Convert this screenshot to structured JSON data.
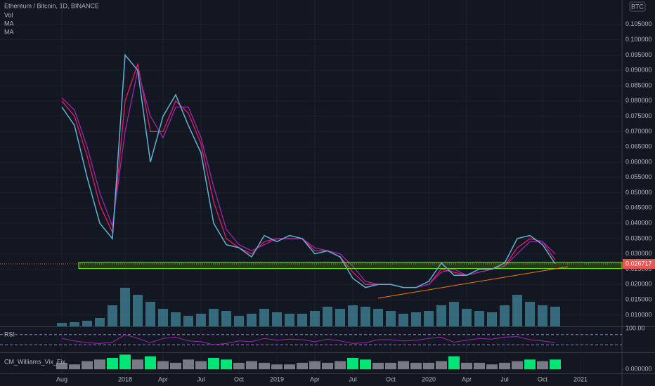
{
  "chart_data": [
    {
      "type": "line",
      "title": "Ethereum / Bitcoin, 1D, BINANCE",
      "currency": "BTC",
      "categories": [
        "Aug",
        null,
        null,
        null,
        null,
        "2018",
        null,
        null,
        "Apr",
        null,
        null,
        "Jul",
        null,
        null,
        "Oct",
        null,
        null,
        "2019",
        null,
        null,
        "Apr",
        null,
        null,
        "Jul",
        null,
        null,
        "Oct",
        null,
        null,
        "2020",
        null,
        null,
        "Apr",
        null,
        null,
        "Jul",
        null,
        null,
        "Oct",
        null,
        null,
        "2021"
      ],
      "values": [
        0.078,
        0.072,
        0.055,
        0.04,
        0.035,
        0.095,
        0.09,
        0.06,
        0.075,
        0.082,
        0.072,
        0.063,
        0.04,
        0.033,
        0.032,
        0.029,
        0.036,
        0.034,
        0.036,
        0.035,
        0.03,
        0.031,
        0.029,
        0.022,
        0.019,
        0.02,
        0.02,
        0.019,
        0.019,
        0.021,
        0.027,
        0.023,
        0.023,
        0.025,
        0.025,
        0.027,
        0.035,
        0.036,
        0.033,
        0.026717,
        null,
        null
      ],
      "color": "#5fb3d6",
      "series": [
        {
          "name": "Vol",
          "type": "bar",
          "axis": "y2",
          "color": "#3f7f95",
          "values": [
            5,
            6,
            8,
            12,
            30,
            55,
            45,
            35,
            25,
            20,
            15,
            18,
            25,
            22,
            15,
            18,
            25,
            20,
            18,
            18,
            22,
            28,
            25,
            30,
            28,
            25,
            22,
            18,
            20,
            22,
            30,
            35,
            25,
            22,
            20,
            30,
            45,
            35,
            30,
            28,
            null,
            null
          ]
        },
        {
          "name": "MA",
          "color": "#e91e63",
          "values": [
            0.08,
            0.075,
            0.062,
            0.046,
            0.037,
            0.08,
            0.092,
            0.07,
            0.07,
            0.08,
            0.076,
            0.066,
            0.047,
            0.035,
            0.032,
            0.03,
            0.034,
            0.035,
            0.035,
            0.035,
            0.031,
            0.031,
            0.029,
            0.024,
            0.02,
            0.02,
            0.02,
            0.019,
            0.019,
            0.02,
            0.025,
            0.024,
            0.023,
            0.024,
            0.025,
            0.026,
            0.032,
            0.035,
            0.034,
            0.028,
            null,
            null
          ]
        },
        {
          "name": "MA",
          "color": "#9c27b0",
          "values": [
            0.081,
            0.077,
            0.065,
            0.05,
            0.039,
            0.07,
            0.09,
            0.075,
            0.068,
            0.078,
            0.078,
            0.068,
            0.052,
            0.038,
            0.033,
            0.031,
            0.033,
            0.035,
            0.035,
            0.035,
            0.032,
            0.031,
            0.03,
            0.026,
            0.021,
            0.02,
            0.02,
            0.019,
            0.019,
            0.02,
            0.024,
            0.025,
            0.023,
            0.024,
            0.025,
            0.026,
            0.03,
            0.034,
            0.034,
            0.03,
            null,
            null
          ]
        }
      ],
      "ylim": [
        0.0063,
        0.113
      ],
      "y2lim": [
        0,
        100
      ],
      "yticks": [
        {
          "value": 0.01,
          "label": "0.010000"
        },
        {
          "value": 0.015,
          "label": "0.015000"
        },
        {
          "value": 0.02,
          "label": "0.020000"
        },
        {
          "value": 0.025,
          "label": "0.025000"
        },
        {
          "value": 0.03,
          "label": "0.030000"
        },
        {
          "value": 0.035,
          "label": "0.035000"
        },
        {
          "value": 0.04,
          "label": "0.040000"
        },
        {
          "value": 0.045,
          "label": "0.045000"
        },
        {
          "value": 0.05,
          "label": "0.050000"
        },
        {
          "value": 0.055,
          "label": "0.055000"
        },
        {
          "value": 0.06,
          "label": "0.060000"
        },
        {
          "value": 0.065,
          "label": "0.065000"
        },
        {
          "value": 0.07,
          "label": "0.070000"
        },
        {
          "value": 0.075,
          "label": "0.075000"
        },
        {
          "value": 0.08,
          "label": "0.080000"
        },
        {
          "value": 0.085,
          "label": "0.085000"
        },
        {
          "value": 0.09,
          "label": "0.090000"
        },
        {
          "value": 0.095,
          "label": "0.095000"
        },
        {
          "value": 0.1,
          "label": "0.100000"
        },
        {
          "value": 0.105,
          "label": "0.105000"
        }
      ],
      "grid": true,
      "support_zone": [
        0.0252,
        0.0272
      ],
      "zone_color": "#76ff03",
      "trendline": {
        "values": [
          0.0155,
          0.0258
        ],
        "span": [
          25,
          40
        ],
        "color": "#f57c00"
      },
      "last_value": 0.026717,
      "last_color": "#ef5350"
    },
    {
      "type": "line",
      "title": "RSI",
      "color": "#9c27b0",
      "values": [
        55,
        45,
        38,
        35,
        40,
        70,
        55,
        38,
        55,
        60,
        45,
        42,
        30,
        35,
        45,
        42,
        55,
        48,
        52,
        50,
        42,
        52,
        45,
        35,
        38,
        50,
        50,
        45,
        48,
        55,
        60,
        40,
        48,
        55,
        52,
        60,
        62,
        50,
        45,
        38,
        null,
        null
      ],
      "ylim": [
        0,
        100
      ],
      "yticks": [
        {
          "value": 100,
          "label": "100.00"
        }
      ],
      "bands": [
        30,
        70
      ],
      "band_color": "#9c7bd6"
    },
    {
      "type": "bar",
      "title": "CM_Williams_Vix_Fix",
      "values": [
        4,
        3,
        5,
        6,
        7,
        9,
        6,
        8,
        5,
        4,
        6,
        5,
        7,
        6,
        4,
        5,
        4,
        3,
        3,
        4,
        5,
        4,
        5,
        7,
        6,
        4,
        4,
        5,
        4,
        4,
        5,
        8,
        4,
        4,
        3,
        4,
        5,
        6,
        5,
        6,
        null,
        null
      ],
      "colors": [
        "#787b86",
        "#787b86",
        "#787b86",
        "#787b86",
        "#00e676",
        "#00e676",
        "#787b86",
        "#00e676",
        "#787b86",
        "#787b86",
        "#787b86",
        "#787b86",
        "#00e676",
        "#00e676",
        "#787b86",
        "#787b86",
        "#787b86",
        "#787b86",
        "#787b86",
        "#787b86",
        "#787b86",
        "#787b86",
        "#787b86",
        "#00e676",
        "#00e676",
        "#787b86",
        "#787b86",
        "#787b86",
        "#787b86",
        "#787b86",
        "#787b86",
        "#00e676",
        "#787b86",
        "#787b86",
        "#787b86",
        "#787b86",
        "#787b86",
        "#00e676",
        "#787b86",
        "#00e676",
        null,
        null
      ],
      "ylim": [
        -2.5,
        10
      ],
      "yticks": [
        {
          "value": 0,
          "label": "0.000000"
        }
      ]
    }
  ]
}
